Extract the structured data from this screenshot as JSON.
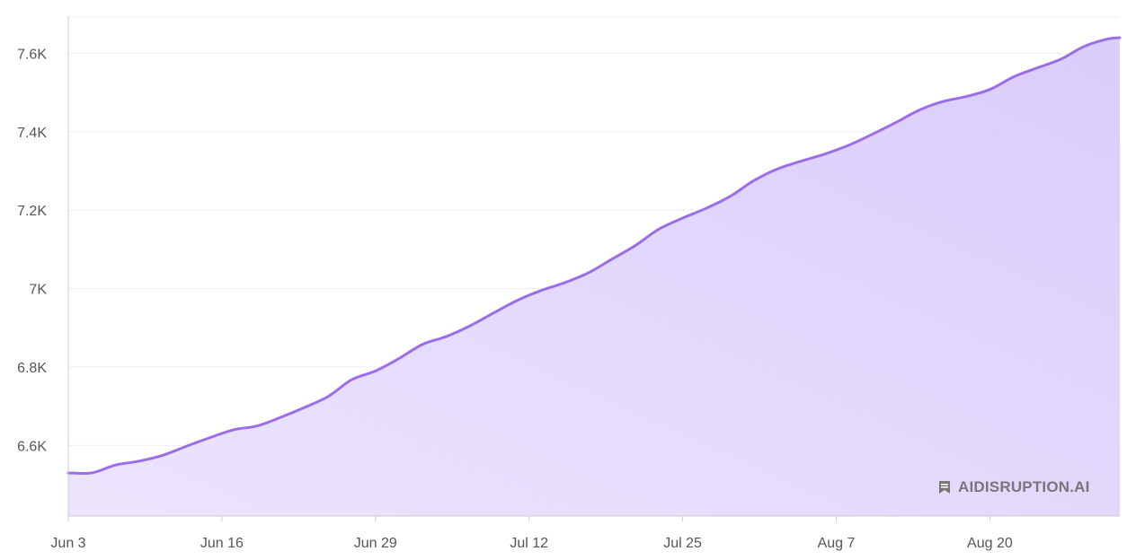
{
  "chart_data": {
    "type": "area",
    "title": "",
    "xlabel": "",
    "ylabel": "",
    "x_ticks": [
      "Jun 3",
      "Jun 16",
      "Jun 29",
      "Jul 12",
      "Jul 25",
      "Aug 7",
      "Aug 20"
    ],
    "y_ticks": [
      "6.6K",
      "6.8K",
      "7K",
      "7.2K",
      "7.4K",
      "7.6K"
    ],
    "y_tick_values": [
      6600,
      6800,
      7000,
      7200,
      7400,
      7600
    ],
    "ylim": [
      6420,
      7695
    ],
    "xlim": [
      "Jun 3",
      "Aug 31"
    ],
    "grid": true,
    "series": [
      {
        "color": "#9b6ee8",
        "fill_color": "#dcd0fb",
        "x": [
          "Jun 3",
          "Jun 5",
          "Jun 7",
          "Jun 9",
          "Jun 11",
          "Jun 13",
          "Jun 15",
          "Jun 17",
          "Jun 19",
          "Jun 21",
          "Jun 23",
          "Jun 25",
          "Jun 27",
          "Jun 29",
          "Jul 1",
          "Jul 3",
          "Jul 5",
          "Jul 7",
          "Jul 9",
          "Jul 11",
          "Jul 13",
          "Jul 15",
          "Jul 17",
          "Jul 19",
          "Jul 21",
          "Jul 23",
          "Jul 25",
          "Jul 27",
          "Jul 29",
          "Jul 31",
          "Aug 2",
          "Aug 4",
          "Aug 6",
          "Aug 8",
          "Aug 10",
          "Aug 12",
          "Aug 14",
          "Aug 16",
          "Aug 18",
          "Aug 20",
          "Aug 22",
          "Aug 24",
          "Aug 26",
          "Aug 28",
          "Aug 30",
          "Aug 31"
        ],
        "values": [
          6530,
          6530,
          6550,
          6560,
          6575,
          6598,
          6620,
          6640,
          6650,
          6672,
          6697,
          6725,
          6768,
          6790,
          6822,
          6858,
          6878,
          6905,
          6938,
          6970,
          6995,
          7015,
          7040,
          7075,
          7110,
          7152,
          7180,
          7205,
          7235,
          7275,
          7305,
          7325,
          7343,
          7365,
          7393,
          7423,
          7455,
          7477,
          7490,
          7508,
          7540,
          7563,
          7585,
          7618,
          7637,
          7640
        ]
      }
    ]
  },
  "watermark": {
    "icon": "bookmark-icon",
    "text": "AIDISRUPTION.AI"
  }
}
